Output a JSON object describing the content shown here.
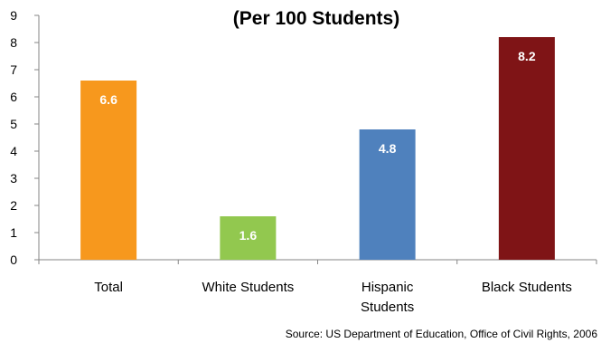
{
  "chart_data": {
    "type": "bar",
    "title": "(Per 100 Students)",
    "categories": [
      "Total",
      "White Students",
      "Hispanic Students",
      "Black Students"
    ],
    "category_lines": [
      [
        "Total"
      ],
      [
        "White Students"
      ],
      [
        "Hispanic",
        "Students"
      ],
      [
        "Black Students"
      ]
    ],
    "values": [
      6.6,
      1.6,
      4.8,
      8.2
    ],
    "value_labels": [
      "6.6",
      "1.6",
      "4.8",
      "8.2"
    ],
    "bar_colors": [
      "#F7981D",
      "#92C84F",
      "#4F81BD",
      "#7F1416"
    ],
    "ylim": [
      0,
      9
    ],
    "yticks": [
      0,
      1,
      2,
      3,
      4,
      5,
      6,
      7,
      8,
      9
    ],
    "xlabel": "",
    "ylabel": "",
    "grid": false,
    "legend": "none",
    "source": "Source:  US Department of Education, Office of Civil Rights, 2006"
  }
}
